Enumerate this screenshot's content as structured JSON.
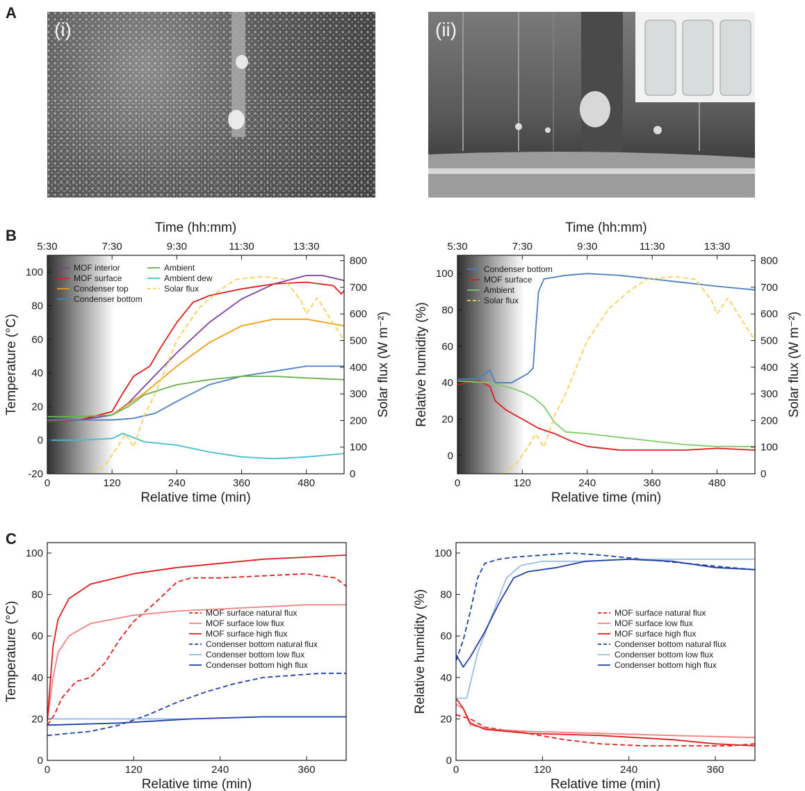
{
  "panels": {
    "a": "A",
    "b": "B",
    "c": "C"
  },
  "photos": {
    "left_tag": "(i)",
    "right_tag": "(ii)"
  },
  "chart_data": [
    {
      "id": "b-left",
      "type": "line",
      "top_axis_label": "Time (hh:mm)",
      "top_ticks": [
        {
          "x": 0,
          "label": "5:30"
        },
        {
          "x": 120,
          "label": "7:30"
        },
        {
          "x": 240,
          "label": "9:30"
        },
        {
          "x": 360,
          "label": "11:30"
        },
        {
          "x": 480,
          "label": "13:30"
        }
      ],
      "xlabel": "Relative time (min)",
      "ylabel": "Temperature (°C)",
      "y2label": "Solar flux (W m⁻²)",
      "xlim": [
        0,
        550
      ],
      "xticks": [
        0,
        120,
        240,
        360,
        480
      ],
      "ylim": [
        -20,
        110
      ],
      "yticks": [
        -20,
        0,
        20,
        40,
        60,
        80,
        100
      ],
      "y2lim": [
        0,
        820
      ],
      "y2ticks": [
        0,
        100,
        200,
        300,
        400,
        500,
        600,
        700,
        800
      ],
      "shade_until": 125,
      "series": [
        {
          "name": "MOF interior",
          "color": "#7b3f9e",
          "x": [
            0,
            60,
            120,
            150,
            180,
            240,
            300,
            360,
            420,
            480,
            510,
            550
          ],
          "y": [
            12,
            12,
            15,
            22,
            32,
            52,
            70,
            84,
            93,
            98,
            98,
            95
          ]
        },
        {
          "name": "MOF surface",
          "color": "#e31a1c",
          "x": [
            0,
            60,
            120,
            140,
            160,
            190,
            210,
            240,
            270,
            300,
            360,
            420,
            480,
            530,
            545,
            550
          ],
          "y": [
            11,
            12,
            17,
            28,
            38,
            44,
            55,
            70,
            82,
            86,
            90,
            93,
            94,
            92,
            87,
            89
          ]
        },
        {
          "name": "Condenser top",
          "color": "#f39c12",
          "x": [
            0,
            60,
            120,
            180,
            240,
            300,
            360,
            420,
            480,
            550
          ],
          "y": [
            14,
            14,
            15,
            28,
            44,
            58,
            68,
            72,
            72,
            68
          ]
        },
        {
          "name": "Condenser bottom",
          "color": "#4a7fc1",
          "x": [
            0,
            60,
            120,
            160,
            200,
            240,
            300,
            360,
            420,
            480,
            550
          ],
          "y": [
            12,
            12,
            12,
            13,
            16,
            23,
            33,
            38,
            41,
            44,
            44
          ]
        },
        {
          "name": "Ambient",
          "color": "#6ab04c",
          "x": [
            0,
            60,
            120,
            150,
            180,
            240,
            300,
            360,
            420,
            480,
            550
          ],
          "y": [
            14,
            14,
            15,
            20,
            27,
            33,
            36,
            38,
            38,
            37,
            36
          ]
        },
        {
          "name": "Ambient dew",
          "color": "#3fbfcf",
          "x": [
            0,
            60,
            120,
            140,
            180,
            240,
            300,
            360,
            420,
            480,
            550
          ],
          "y": [
            0,
            0,
            1,
            4,
            -1,
            -3,
            -7,
            -10,
            -11,
            -10,
            -8
          ]
        },
        {
          "name": "Solar flux",
          "color": "#f7d154",
          "dashed": true,
          "axis": "y2",
          "x": [
            85,
            110,
            130,
            145,
            160,
            180,
            200,
            240,
            280,
            320,
            350,
            400,
            440,
            470,
            480,
            500,
            550
          ],
          "y": [
            0,
            40,
            100,
            150,
            100,
            220,
            300,
            500,
            620,
            690,
            730,
            740,
            730,
            650,
            600,
            660,
            500
          ]
        }
      ],
      "legend_cols": [
        [
          "MOF interior",
          "MOF surface",
          "Condenser top",
          "Condenser bottom"
        ],
        [
          "Ambient",
          "Ambient dew",
          "Solar flux"
        ]
      ]
    },
    {
      "id": "b-right",
      "type": "line",
      "top_axis_label": "Time (hh:mm)",
      "top_ticks": [
        {
          "x": 0,
          "label": "5:30"
        },
        {
          "x": 120,
          "label": "7:30"
        },
        {
          "x": 240,
          "label": "9:30"
        },
        {
          "x": 360,
          "label": "11:30"
        },
        {
          "x": 480,
          "label": "13:30"
        }
      ],
      "xlabel": "Relative time (min)",
      "ylabel": "Relative humidity  (%)",
      "y2label": "Solar flux (W m⁻²)",
      "xlim": [
        0,
        550
      ],
      "xticks": [
        0,
        120,
        240,
        360,
        480
      ],
      "ylim": [
        -10,
        110
      ],
      "yticks": [
        0,
        20,
        40,
        60,
        80,
        100
      ],
      "y2lim": [
        0,
        820
      ],
      "y2ticks": [
        0,
        100,
        200,
        300,
        400,
        500,
        600,
        700,
        800
      ],
      "shade_until": 125,
      "series": [
        {
          "name": "Condenser bottom",
          "color": "#4a7fc1",
          "x": [
            0,
            40,
            60,
            70,
            100,
            130,
            140,
            145,
            150,
            160,
            200,
            240,
            300,
            360,
            420,
            480,
            550
          ],
          "y": [
            42,
            42,
            47,
            40,
            40,
            45,
            48,
            70,
            90,
            97,
            99,
            100,
            99,
            97,
            95,
            93,
            91
          ]
        },
        {
          "name": "MOF surface",
          "color": "#e31a1c",
          "x": [
            0,
            40,
            60,
            70,
            90,
            120,
            150,
            180,
            210,
            240,
            300,
            360,
            420,
            480,
            550
          ],
          "y": [
            39,
            41,
            38,
            30,
            25,
            20,
            15,
            12,
            8,
            5,
            3,
            3,
            3,
            4,
            3
          ]
        },
        {
          "name": "Ambient",
          "color": "#7dcc6a",
          "x": [
            0,
            60,
            100,
            120,
            140,
            160,
            180,
            200,
            240,
            300,
            360,
            420,
            480,
            550
          ],
          "y": [
            41,
            40,
            37,
            35,
            32,
            27,
            18,
            13,
            12,
            10,
            8,
            6,
            5,
            5
          ]
        },
        {
          "name": "Solar flux",
          "color": "#f7d154",
          "dashed": true,
          "axis": "y2",
          "x": [
            85,
            110,
            130,
            145,
            160,
            180,
            200,
            240,
            280,
            320,
            350,
            400,
            440,
            470,
            480,
            500,
            550
          ],
          "y": [
            0,
            40,
            100,
            150,
            100,
            220,
            300,
            500,
            620,
            690,
            730,
            740,
            730,
            650,
            600,
            660,
            500
          ]
        }
      ],
      "legend_cols": [
        [
          "Condenser bottom",
          "MOF surface",
          "Ambient",
          "Solar flux"
        ]
      ]
    },
    {
      "id": "c-left",
      "type": "line",
      "xlabel": "Relative time (min)",
      "ylabel": "Temperature (°C)",
      "xlim": [
        0,
        415
      ],
      "xticks": [
        0,
        120,
        240,
        360
      ],
      "ylim": [
        0,
        105
      ],
      "yticks": [
        0,
        20,
        40,
        60,
        80,
        100
      ],
      "series": [
        {
          "name": "MOF surface natural flux",
          "color": "#e31a1c",
          "dashed": true,
          "x": [
            0,
            10,
            20,
            40,
            60,
            80,
            100,
            120,
            150,
            180,
            200,
            240,
            300,
            360,
            400,
            415
          ],
          "y": [
            17,
            22,
            30,
            38,
            40,
            47,
            58,
            67,
            76,
            86,
            88,
            88,
            89,
            90,
            88,
            84
          ]
        },
        {
          "name": "MOF surface low flux",
          "color": "#f08080",
          "x": [
            0,
            8,
            15,
            30,
            60,
            120,
            180,
            240,
            300,
            360,
            415
          ],
          "y": [
            19,
            40,
            52,
            60,
            66,
            70,
            72,
            73,
            74,
            75,
            75
          ]
        },
        {
          "name": "MOF surface high flux",
          "color": "#e31a1c",
          "x": [
            0,
            8,
            15,
            30,
            60,
            120,
            180,
            240,
            300,
            360,
            415
          ],
          "y": [
            19,
            55,
            68,
            78,
            85,
            90,
            93,
            95,
            97,
            98,
            99
          ]
        },
        {
          "name": "Condenser bottom natural flux",
          "color": "#1f3fa8",
          "dashed": true,
          "x": [
            0,
            30,
            60,
            100,
            140,
            180,
            220,
            260,
            300,
            340,
            380,
            415
          ],
          "y": [
            12,
            13,
            14,
            17,
            22,
            28,
            33,
            37,
            40,
            41,
            42,
            42
          ]
        },
        {
          "name": "Condenser bottom low flux",
          "color": "#8fb3e8",
          "x": [
            0,
            100,
            200,
            300,
            415
          ],
          "y": [
            20,
            20,
            20,
            21,
            21
          ]
        },
        {
          "name": "Condenser bottom high flux",
          "color": "#1f3fa8",
          "x": [
            0,
            100,
            200,
            300,
            415
          ],
          "y": [
            17,
            18,
            20,
            21,
            21
          ]
        }
      ],
      "legend_cols": [
        [
          "MOF surface natural flux",
          "MOF surface low flux",
          "MOF surface high flux",
          "Condenser bottom natural flux",
          "Condenser bottom low flux",
          "Condenser bottom high flux"
        ]
      ]
    },
    {
      "id": "c-right",
      "type": "line",
      "xlabel": "Relative time (min)",
      "ylabel": "Relative humidity (%)",
      "xlim": [
        0,
        415
      ],
      "xticks": [
        0,
        120,
        240,
        360
      ],
      "ylim": [
        0,
        105
      ],
      "yticks": [
        0,
        20,
        40,
        60,
        80,
        100
      ],
      "series": [
        {
          "name": "MOF surface natural flux",
          "color": "#e31a1c",
          "dashed": true,
          "x": [
            0,
            20,
            40,
            60,
            100,
            150,
            200,
            260,
            320,
            380,
            415
          ],
          "y": [
            22,
            20,
            16,
            15,
            13,
            10,
            8,
            7,
            7,
            7,
            8
          ]
        },
        {
          "name": "MOF surface low flux",
          "color": "#f08080",
          "x": [
            0,
            10,
            20,
            50,
            100,
            200,
            300,
            415
          ],
          "y": [
            27,
            25,
            17,
            15,
            14,
            13,
            12,
            11
          ]
        },
        {
          "name": "MOF surface high flux",
          "color": "#e31a1c",
          "x": [
            0,
            10,
            20,
            40,
            100,
            200,
            300,
            360,
            415
          ],
          "y": [
            30,
            25,
            18,
            15,
            13,
            12,
            10,
            8,
            7
          ]
        },
        {
          "name": "Condenser bottom natural flux",
          "color": "#1f3fa8",
          "dashed": true,
          "x": [
            0,
            10,
            20,
            30,
            40,
            60,
            80,
            120,
            160,
            200,
            260,
            320,
            380,
            415
          ],
          "y": [
            48,
            58,
            72,
            88,
            95,
            97,
            98,
            99,
            100,
            99,
            97,
            95,
            93,
            92
          ]
        },
        {
          "name": "Condenser bottom low flux",
          "color": "#9fbde0",
          "x": [
            0,
            15,
            30,
            50,
            70,
            90,
            120,
            180,
            240,
            300,
            360,
            415
          ],
          "y": [
            30,
            30,
            52,
            70,
            88,
            94,
            96,
            96,
            97,
            97,
            97,
            97
          ]
        },
        {
          "name": "Condenser bottom high flux",
          "color": "#1f3fa8",
          "x": [
            0,
            10,
            20,
            40,
            60,
            80,
            100,
            140,
            180,
            240,
            300,
            360,
            415
          ],
          "y": [
            51,
            45,
            50,
            62,
            76,
            88,
            91,
            93,
            96,
            97,
            96,
            93,
            92
          ]
        }
      ],
      "legend_cols": [
        [
          "MOF surface natural flux",
          "MOF surface low flux",
          "MOF surface high flux",
          "Condenser bottom natural flux",
          "Condenser bottom low flux",
          "Condenser bottom high flux"
        ]
      ]
    }
  ]
}
